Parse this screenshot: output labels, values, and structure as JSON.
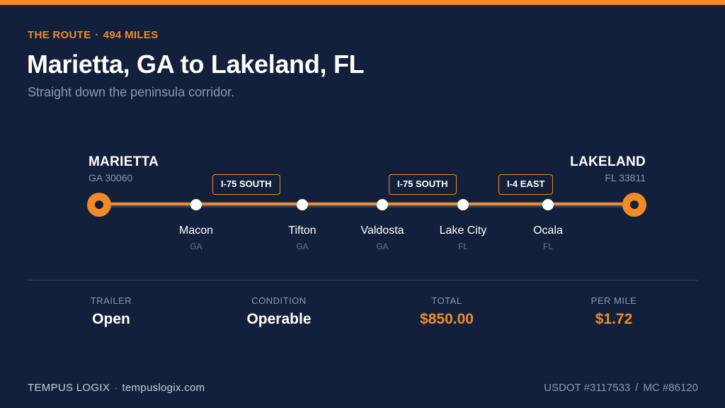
{
  "colors": {
    "accent": "#f28a28",
    "background": "#12203b",
    "muted": "#8d98ad"
  },
  "header": {
    "eyebrow_label": "THE ROUTE",
    "eyebrow_separator": "·",
    "eyebrow_miles": "494 MILES",
    "title": "Marietta, GA to Lakeland, FL",
    "subtitle": "Straight down the peninsula corridor."
  },
  "route": {
    "origin": {
      "name": "MARIETTA",
      "sub": "GA 30060"
    },
    "destination": {
      "name": "LAKELAND",
      "sub": "FL 33811"
    },
    "stops": [
      {
        "city": "Macon",
        "state": "GA"
      },
      {
        "city": "Tifton",
        "state": "GA"
      },
      {
        "city": "Valdosta",
        "state": "GA"
      },
      {
        "city": "Lake City",
        "state": "FL"
      },
      {
        "city": "Ocala",
        "state": "FL"
      }
    ],
    "highways": [
      "I-75 SOUTH",
      "I-75 SOUTH",
      "I-4 EAST"
    ]
  },
  "stats": [
    {
      "label": "TRAILER",
      "value": "Open"
    },
    {
      "label": "CONDITION",
      "value": "Operable"
    },
    {
      "label": "TOTAL",
      "value": "$850.00"
    },
    {
      "label": "PER MILE",
      "value": "$1.72"
    }
  ],
  "footer": {
    "brand": "TEMPUS LOGIX",
    "separator": "·",
    "website": "tempuslogix.com",
    "usdot": "USDOT #3117533",
    "slash": "/",
    "mc": "MC #86120"
  }
}
